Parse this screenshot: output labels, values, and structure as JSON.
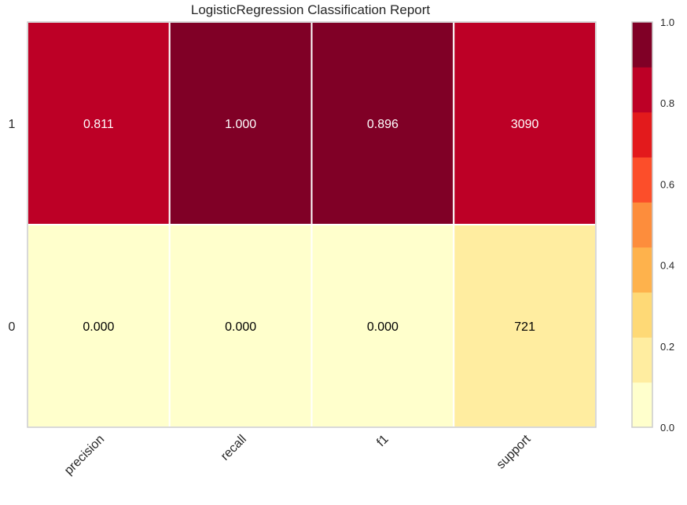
{
  "chart_data": {
    "type": "heatmap",
    "title": "LogisticRegression Classification Report",
    "xlabel": "",
    "ylabel": "",
    "x_categories": [
      "precision",
      "recall",
      "f1",
      "support"
    ],
    "y_categories": [
      "1",
      "0"
    ],
    "cells": [
      {
        "row": "1",
        "col": "precision",
        "label": "0.811",
        "value": 0.811
      },
      {
        "row": "1",
        "col": "recall",
        "label": "1.000",
        "value": 1.0
      },
      {
        "row": "1",
        "col": "f1",
        "label": "0.896",
        "value": 0.896
      },
      {
        "row": "1",
        "col": "support",
        "label": "3090",
        "value": 0.811
      },
      {
        "row": "0",
        "col": "precision",
        "label": "0.000",
        "value": 0.0
      },
      {
        "row": "0",
        "col": "recall",
        "label": "0.000",
        "value": 0.0
      },
      {
        "row": "0",
        "col": "f1",
        "label": "0.000",
        "value": 0.0
      },
      {
        "row": "0",
        "col": "support",
        "label": "721",
        "value": 0.189
      }
    ],
    "colorbar": {
      "range": [
        0.0,
        1.0
      ],
      "ticks": [
        "0.0",
        "0.2",
        "0.4",
        "0.6",
        "0.8",
        "1.0"
      ],
      "colors": [
        "#ffffcc",
        "#ffeda0",
        "#fed976",
        "#feb24c",
        "#fd8d3c",
        "#fc4e2a",
        "#e31a1c",
        "#bd0026",
        "#800026"
      ]
    },
    "grid": false
  }
}
